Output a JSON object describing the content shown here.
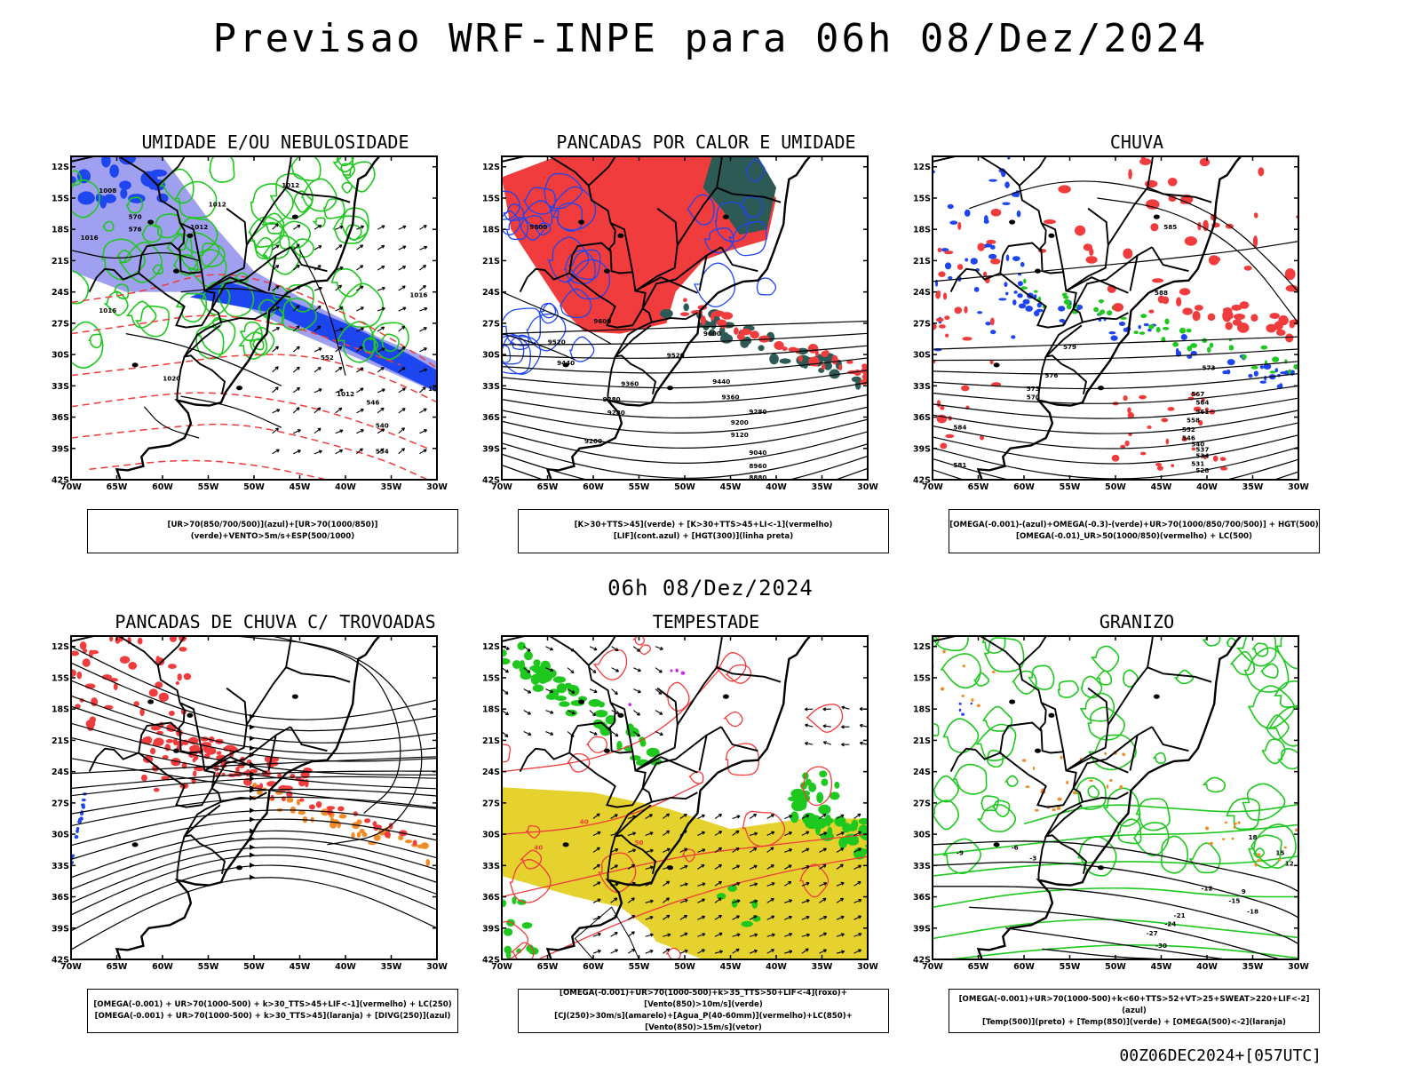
{
  "header": {
    "title": "Previsao WRF-INPE  para 06h 08/Dez/2024",
    "mid_date": "06h 08/Dez/2024",
    "footer_stamp": "00Z06DEC2024+[057UTC]"
  },
  "axes": {
    "lat_labels": [
      "12S",
      "15S",
      "18S",
      "21S",
      "24S",
      "27S",
      "30S",
      "33S",
      "36S",
      "39S",
      "42S"
    ],
    "lon_labels": [
      "70W",
      "65W",
      "60W",
      "55W",
      "50W",
      "45W",
      "40W",
      "35W",
      "30W"
    ]
  },
  "panels": [
    {
      "title": "UMIDADE E/OU NEBULOSIDADE",
      "legend": [
        "[UR>70(850/700/500)](azul)+[UR>70(1000/850)](verde)+VENTO>5m/s+ESP(500/1000)"
      ],
      "contour_labels": [
        "1008",
        "1012",
        "1012",
        "1012",
        "1016",
        "1016",
        "1020",
        "570",
        "576",
        "552",
        "546",
        "540",
        "534",
        "1012",
        "1016",
        "1008"
      ]
    },
    {
      "title": "PANCADAS POR CALOR E UMIDADE",
      "legend": [
        "[K>30+TTS>45](verde) + [K>30+TTS>45+LI<-1](vermelho)",
        "[LIF](cont.azul) + [HGT(300)](linha preta)"
      ],
      "contour_labels": [
        "9600",
        "9600",
        "9520",
        "9440",
        "9360",
        "9280",
        "9520",
        "9440",
        "9360",
        "9280",
        "9200",
        "9120",
        "9040",
        "8960",
        "8880",
        "9600",
        "9200",
        "9280"
      ]
    },
    {
      "title": "CHUVA",
      "legend": [
        "[OMEGA(-0.001)-(azul)+OMEGA(-0.3)-(verde)+UR>70(1000/850/700/500)] + HGT(500)",
        "[OMEGA(-0.01)_UR>50(1000/850)(vermelho) + LC(500)"
      ],
      "contour_labels": [
        "585",
        "588",
        "573",
        "576",
        "579",
        "573",
        "570",
        "567",
        "564",
        "561",
        "558",
        "552",
        "546",
        "540",
        "537",
        "534",
        "531",
        "528",
        "584",
        "581"
      ]
    },
    {
      "title": "PANCADAS DE CHUVA C/ TROVOADAS",
      "legend": [
        "[OMEGA(-0.001) + UR>70(1000-500) + k>30_TTS>45+LIF<-1](vermelho) + LC(250)",
        "[OMEGA(-0.001) + UR>70(1000-500) + k>30_TTS>45](laranja) + [DIVG(250)](azul)"
      ],
      "contour_labels": []
    },
    {
      "title": "TEMPESTADE",
      "legend": [
        "[OMEGA(-0.001)+UR>70(1000-500)+k>35_TTS>50+LIF<-4](roxo)+[Vento(850)>10m/s](verde)",
        "[CJ(250)>30m/s](amarelo)+[Agua_P(40-60mm)](vermelho)+LC(850)+[Vento(850)>15m/s](vetor)"
      ],
      "contour_labels": [
        "40",
        "40",
        "50"
      ]
    },
    {
      "title": "GRANIZO",
      "legend": [
        "[OMEGA(-0.001)+UR>70(1000-500)+k<60+TTS>52+VT>25+SWEAT>220+LIF<-2](azul)",
        "[Temp(500)](preto) + [Temp(850)](verde) + [OMEGA(500)<-2](laranja)"
      ],
      "contour_labels": [
        "-12",
        "-15",
        "-18",
        "-21",
        "-24",
        "-27",
        "-30",
        "9",
        "12",
        "15",
        "18",
        "-9",
        "-6",
        "-3"
      ]
    }
  ],
  "colors": {
    "red": "#f03c3c",
    "green": "#1ec81e",
    "blue": "#1e46f0",
    "lightblue": "#a0a0f0",
    "darkteal": "#2e5a55",
    "orange": "#f08c28",
    "yellow": "#e6d22e",
    "purple": "#c828e6",
    "black": "#000000",
    "legend_dark_green": "#0aa00a"
  }
}
